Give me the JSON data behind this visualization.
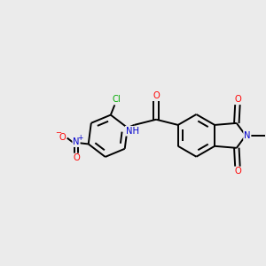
{
  "background_color": "#ebebeb",
  "bond_color": "#000000",
  "atom_colors": {
    "O": "#ff0000",
    "N": "#0000cc",
    "Cl": "#00aa00",
    "C": "#000000"
  },
  "figsize": [
    3.0,
    3.0
  ],
  "dpi": 100
}
